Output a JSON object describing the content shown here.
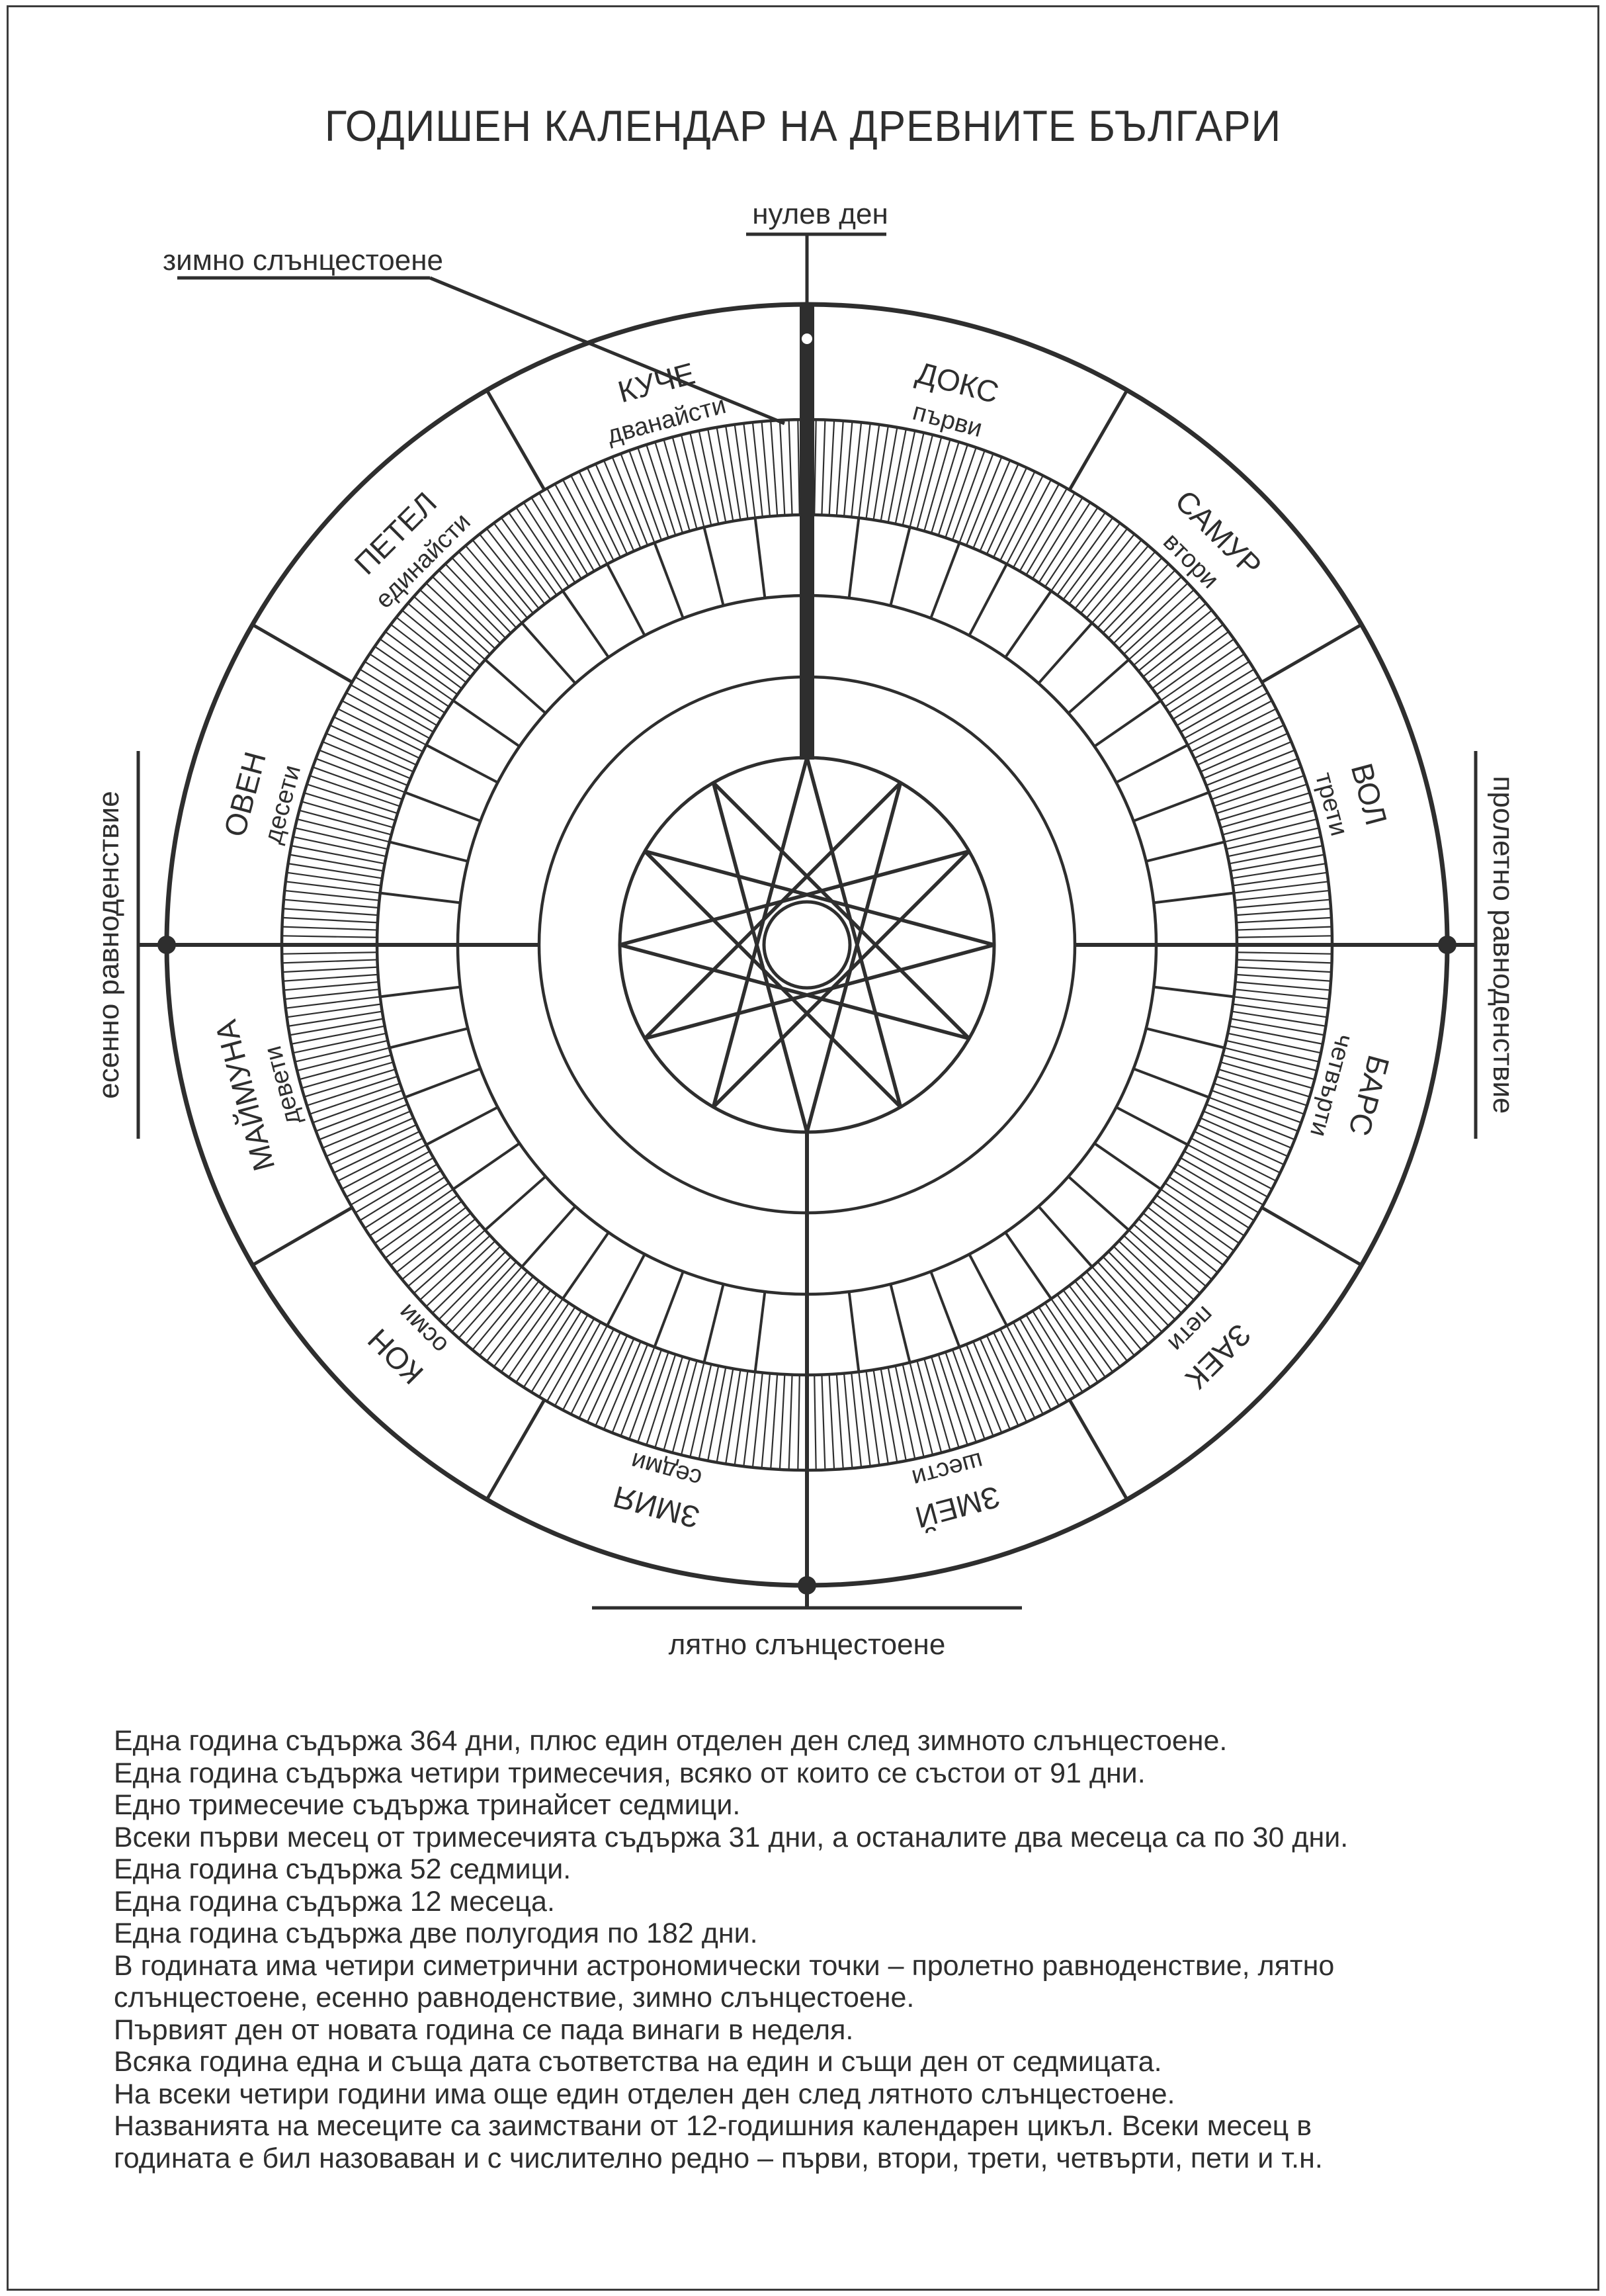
{
  "page": {
    "title": "ГОДИШЕН КАЛЕНДАР НА ДРЕВНИТЕ БЪЛГАРИ"
  },
  "annotations": {
    "zero_day": "нулев ден",
    "winter_solstice": "зимно слънцестоене",
    "summer_solstice": "лятно слънцестоене",
    "autumn_equinox": "есенно равноденствие",
    "spring_equinox": "пролетно равноденствие"
  },
  "wheel": {
    "type": "annual-calendar-wheel",
    "days_in_year": 364,
    "weeks_in_year": 52,
    "months_in_year": 12,
    "trimesters_in_year": 4,
    "star_points": 12,
    "months": [
      {
        "name": "ДОКС",
        "ordinal": "първи"
      },
      {
        "name": "САМУР",
        "ordinal": "втори"
      },
      {
        "name": "ВОЛ",
        "ordinal": "трети"
      },
      {
        "name": "БАРС",
        "ordinal": "четвърти"
      },
      {
        "name": "ЗАЕК",
        "ordinal": "пети"
      },
      {
        "name": "ЗМЕЙ",
        "ordinal": "шести"
      },
      {
        "name": "ЗМИЯ",
        "ordinal": "седми"
      },
      {
        "name": "КОН",
        "ordinal": "осми"
      },
      {
        "name": "МАЙМУНА",
        "ordinal": "девети"
      },
      {
        "name": "ОВЕН",
        "ordinal": "десети"
      },
      {
        "name": "ПЕТЕЛ",
        "ordinal": "единайсти"
      },
      {
        "name": "КУЧЕ",
        "ordinal": "дванайсти"
      }
    ]
  },
  "notes": [
    "Една година съдържа 364 дни, плюс един отделен ден след зимното слънцестоене.",
    "Една година съдържа четири тримесечия, всяко от които се състои от 91 дни.",
    "Едно тримесечие съдържа тринайсет седмици.",
    "Всеки първи месец от тримесечията съдържа 31 дни, а останалите два месеца са по 30 дни.",
    "Една година съдържа 52 седмици.",
    "Една година съдържа 12 месеца.",
    "Една година съдържа две полугодия по 182 дни.",
    "В годината има четири симетрични астрономически точки – пролетно равноденствие, лятно",
    "слънцестоене, есенно равноденствие, зимно слънцестоене.",
    "Първият ден от новата година се пада винаги в неделя.",
    "Всяка година една и съща дата съответства на един и същи ден от седмицата.",
    "На всеки четири години има още един отделен ден след лятното слънцестоене.",
    "Названията на месеците са заимствани от 12-годишния календарен цикъл. Всеки месец в",
    "годината е бил назоваван и с числително редно – първи, втори, трети, четвърти, пети и т.н."
  ],
  "colors": {
    "ink": "#2e2e2e",
    "paper": "#ffffff"
  }
}
